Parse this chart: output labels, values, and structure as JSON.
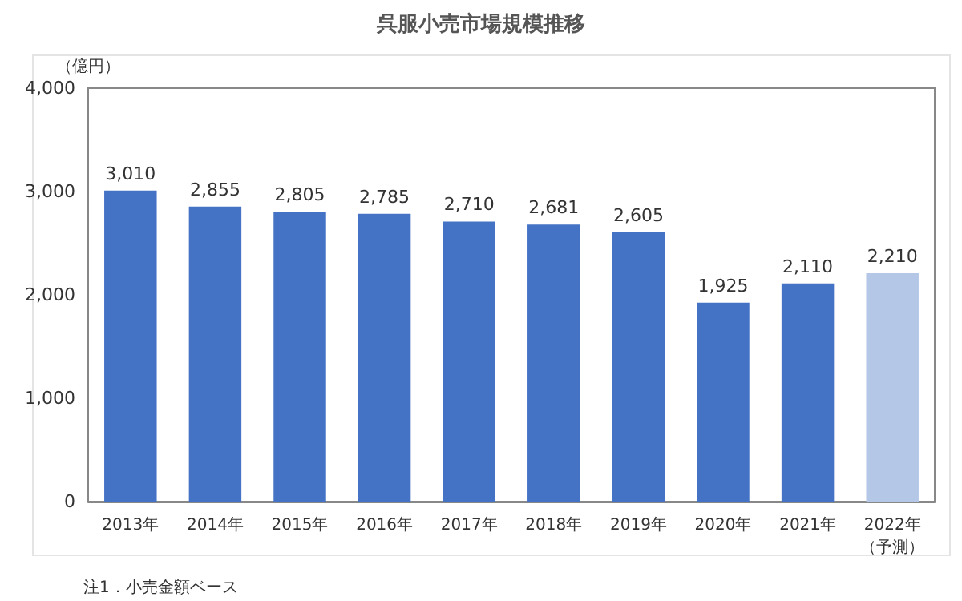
{
  "chart_data": {
    "type": "bar",
    "title": "呉服小売市場規模推移",
    "ylabel": "（億円）",
    "categories": [
      "2013年",
      "2014年",
      "2015年",
      "2016年",
      "2017年",
      "2018年",
      "2019年",
      "2020年",
      "2021年",
      "2022年（予測）"
    ],
    "values": [
      3010,
      2855,
      2805,
      2785,
      2710,
      2681,
      2605,
      1925,
      2110,
      2210
    ],
    "colors": [
      "#4472c4",
      "#4472c4",
      "#4472c4",
      "#4472c4",
      "#4472c4",
      "#4472c4",
      "#4472c4",
      "#4472c4",
      "#4472c4",
      "#b4c7e7"
    ],
    "value_labels": [
      "3,010",
      "2,855",
      "2,805",
      "2,785",
      "2,710",
      "2,681",
      "2,605",
      "1,925",
      "2,110",
      "2,210"
    ],
    "ylim": [
      0,
      4000
    ],
    "yticks": [
      {
        "value": 0,
        "label": "0"
      },
      {
        "value": 1000,
        "label": "1,000"
      },
      {
        "value": 2000,
        "label": "2,000"
      },
      {
        "value": 3000,
        "label": "3,000"
      },
      {
        "value": 4000,
        "label": "4,000"
      }
    ],
    "grid": false,
    "annotations": [
      "注1．小売金額ベース"
    ]
  }
}
